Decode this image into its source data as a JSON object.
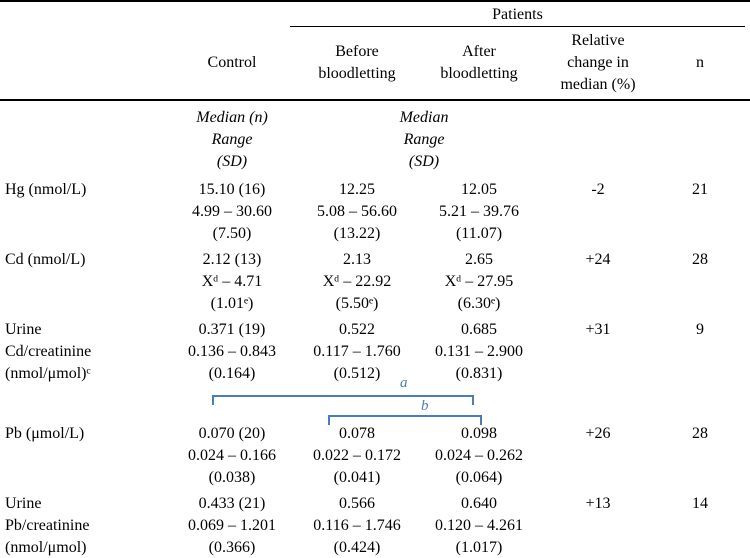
{
  "table": {
    "patients_header": "Patients",
    "col_headers": {
      "label": "",
      "control": "Control",
      "before": "Before bloodletting",
      "after": "After bloodletting",
      "rel_change": "Relative change in median (%)",
      "n": "n"
    },
    "subheader": {
      "control_lines": [
        "Median (n)",
        "Range",
        "(SD)"
      ],
      "patients_lines": [
        "Median",
        "Range",
        "(SD)"
      ]
    },
    "rows": [
      {
        "label": [
          "Hg (nmol/L)"
        ],
        "control": [
          "15.10 (16)",
          "4.99 – 30.60",
          "(7.50)"
        ],
        "before": [
          "12.25",
          "5.08 – 56.60",
          "(13.22)"
        ],
        "after": [
          "12.05",
          "5.21 – 39.76",
          "(11.07)"
        ],
        "rel_change": "-2",
        "n": "21"
      },
      {
        "label": [
          "Cd (nmol/L)"
        ],
        "control": [
          "2.12 (13)",
          "Xᵈ – 4.71",
          "(1.01ᵉ)"
        ],
        "before": [
          "2.13",
          "Xᵈ – 22.92",
          "(5.50ᵉ)"
        ],
        "after": [
          "2.65",
          "Xᵈ – 27.95",
          "(6.30ᵉ)"
        ],
        "rel_change": "+24",
        "n": "28"
      },
      {
        "label": [
          "Urine",
          "Cd/creatinine",
          "(nmol/μmol)ᶜ"
        ],
        "control": [
          "0.371 (19)",
          "0.136 – 0.843",
          "(0.164)"
        ],
        "before": [
          "0.522",
          "0.117 – 1.760",
          "(0.512)"
        ],
        "after": [
          "0.685",
          "0.131 – 2.900",
          "(0.831)"
        ],
        "rel_change": "+31",
        "n": "9"
      },
      {
        "label": [
          "Pb (μmol/L)"
        ],
        "control": [
          "0.070 (20)",
          "0.024 – 0.166",
          "(0.038)"
        ],
        "before": [
          "0.078",
          "0.022 – 0.172",
          "(0.041)"
        ],
        "after": [
          "0.098",
          "0.024 – 0.262",
          "(0.064)"
        ],
        "rel_change": "+26",
        "n": "28"
      },
      {
        "label": [
          "Urine",
          "Pb/creatinine",
          "(nmol/μmol)"
        ],
        "control": [
          "0.433 (21)",
          "0.069 – 1.201",
          "(0.366)"
        ],
        "before": [
          "0.566",
          "0.116 – 1.746",
          "(0.424)"
        ],
        "after": [
          "0.640",
          "0.120 – 4.261",
          "(1.017)"
        ],
        "rel_change": "+13",
        "n": "14"
      }
    ],
    "annotations": {
      "bracket_a_label": "a",
      "bracket_b_label": "b",
      "bracket_color": "#4a7ebb"
    }
  }
}
